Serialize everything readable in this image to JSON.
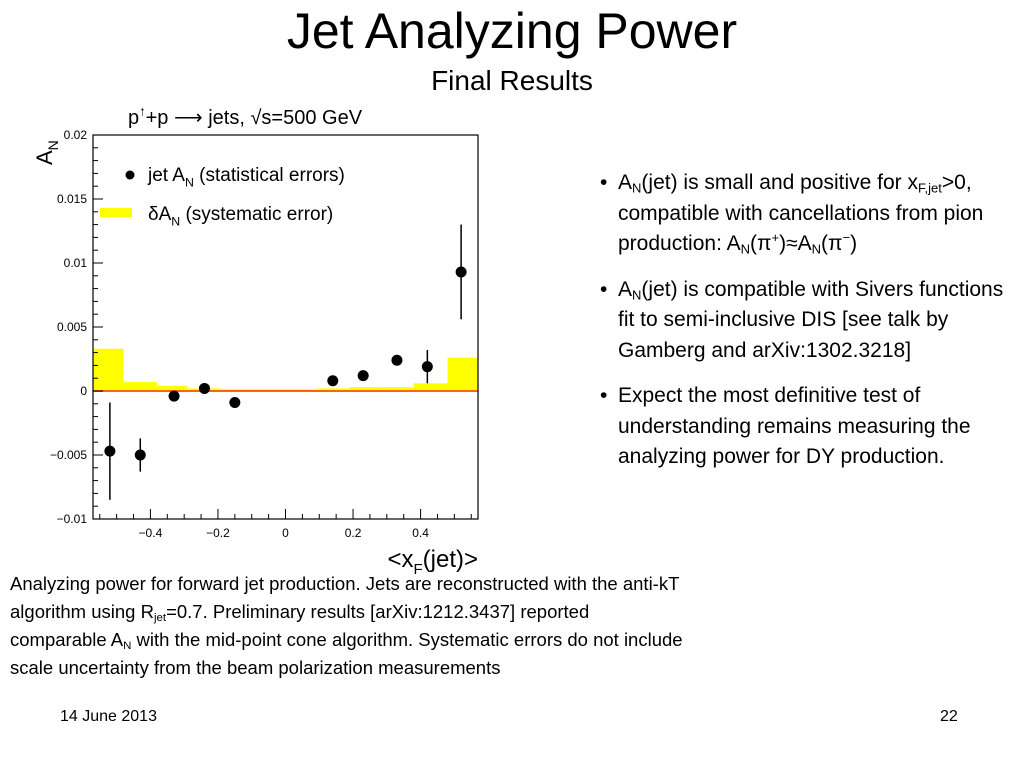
{
  "slide": {
    "title": "Jet Analyzing Power",
    "subtitle": "Final Results",
    "date": "14 June 2013",
    "page_number": "22"
  },
  "bullets": [
    {
      "parts": [
        [
          "A"
        ],
        [
          "N",
          "sub"
        ],
        [
          "(jet) is small and positive for x"
        ],
        [
          "F,jet",
          "sub"
        ],
        [
          ">0, compatible with cancellations from pion production: A"
        ],
        [
          "N",
          "sub"
        ],
        [
          "(π"
        ],
        [
          "+",
          "sup"
        ],
        [
          ")≈A"
        ],
        [
          "N",
          "sub"
        ],
        [
          "(π"
        ],
        [
          "−",
          "sup"
        ],
        [
          ")"
        ]
      ]
    },
    {
      "parts": [
        [
          "A"
        ],
        [
          "N",
          "sub"
        ],
        [
          "(jet) is compatible with Sivers functions fit to semi-inclusive DIS [see talk by Gamberg and arXiv:1302.3218]"
        ]
      ]
    },
    {
      "parts": [
        [
          "Expect the most definitive test of understanding remains measuring the analyzing power for DY production."
        ]
      ]
    }
  ],
  "bullet_glyph": "•",
  "caption": {
    "parts": [
      [
        "Analyzing power for forward jet production.  Jets are reconstructed with the anti-kT algorithm using R"
      ],
      [
        "jet",
        "sub"
      ],
      [
        "=0.7.  Preliminary results [arXiv:1212.3437] reported comparable A"
      ],
      [
        "N",
        "sub"
      ],
      [
        " with the mid-point cone algorithm.  Systematic errors do not include scale uncertainty from the beam polarization measurements"
      ]
    ]
  },
  "chart_data": {
    "type": "scatter",
    "title_parts": [
      [
        "p"
      ],
      [
        "↑",
        "sup"
      ],
      [
        "+p ⟶ jets, √s=500 GeV"
      ]
    ],
    "ylabel": {
      "main": "A",
      "sub": "N"
    },
    "xlabel": {
      "main": "<x",
      "sub": "F",
      "rest": "(jet)>"
    },
    "xlim": [
      -0.57,
      0.57
    ],
    "ylim": [
      -0.01,
      0.02
    ],
    "xticks": [
      -0.4,
      -0.2,
      0,
      0.2,
      0.4
    ],
    "xtick_labels": [
      "−0.4",
      "−0.2",
      "0",
      "0.2",
      "0.4"
    ],
    "yticks": [
      -0.01,
      -0.005,
      0,
      0.005,
      0.01,
      0.015,
      0.02
    ],
    "ytick_labels": [
      "−0.01",
      "−0.005",
      "0",
      "0.005",
      "0.01",
      "0.015",
      "0.02"
    ],
    "legend_position": "top-left",
    "legend": [
      {
        "marker": "dot",
        "parts": [
          [
            "jet A"
          ],
          [
            "N",
            "sub"
          ],
          [
            " (statistical errors)"
          ]
        ]
      },
      {
        "marker": "band",
        "parts": [
          [
            "δA"
          ],
          [
            "N",
            "sub"
          ],
          [
            " (systematic error)"
          ]
        ]
      }
    ],
    "colors": {
      "systematic": "#ffff00",
      "zero_line": "#ff6600",
      "points": "#000000"
    },
    "points": [
      {
        "x": -0.52,
        "y": -0.0047,
        "err": 0.0038
      },
      {
        "x": -0.43,
        "y": -0.005,
        "err": 0.0013
      },
      {
        "x": -0.33,
        "y": -0.0004,
        "err": 0.0003
      },
      {
        "x": -0.24,
        "y": 0.0002,
        "err": 0.0003
      },
      {
        "x": -0.15,
        "y": -0.0009,
        "err": 0.0003
      },
      {
        "x": 0.14,
        "y": 0.0008,
        "err": 0.0003
      },
      {
        "x": 0.23,
        "y": 0.0012,
        "err": 0.0003
      },
      {
        "x": 0.33,
        "y": 0.0024,
        "err": 0.0004
      },
      {
        "x": 0.42,
        "y": 0.0019,
        "err": 0.0013
      },
      {
        "x": 0.52,
        "y": 0.0093,
        "err": 0.0037
      }
    ],
    "systematic_bins": [
      {
        "x0": -0.57,
        "x1": -0.48,
        "h": 0.0033
      },
      {
        "x0": -0.48,
        "x1": -0.38,
        "h": 0.0007
      },
      {
        "x0": -0.38,
        "x1": -0.29,
        "h": 0.0004
      },
      {
        "x0": -0.29,
        "x1": -0.19,
        "h": 0.0002
      },
      {
        "x0": -0.19,
        "x1": 0.09,
        "h": 0.00015
      },
      {
        "x0": 0.09,
        "x1": 0.19,
        "h": 0.0002
      },
      {
        "x0": 0.19,
        "x1": 0.28,
        "h": 0.0003
      },
      {
        "x0": 0.28,
        "x1": 0.38,
        "h": 0.0003
      },
      {
        "x0": 0.38,
        "x1": 0.48,
        "h": 0.0006
      },
      {
        "x0": 0.48,
        "x1": 0.57,
        "h": 0.0026
      }
    ]
  }
}
